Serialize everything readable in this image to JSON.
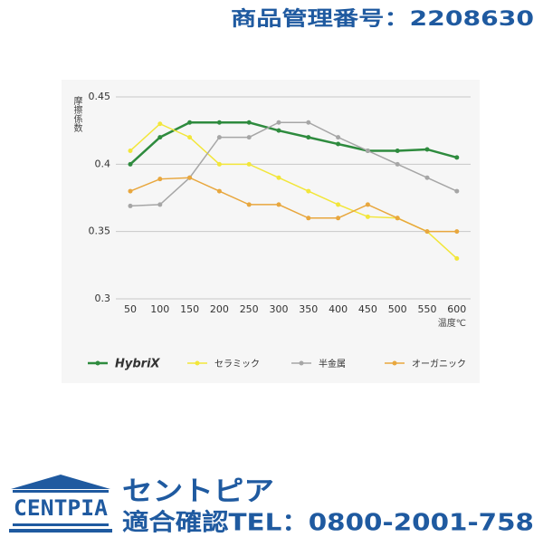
{
  "header": {
    "product_number": "商品管理番号：2208630"
  },
  "chart_data": {
    "type": "line",
    "y_label": "摩擦係数",
    "x_label": "温度℃",
    "categories": [
      "50",
      "100",
      "150",
      "200",
      "250",
      "300",
      "350",
      "400",
      "450",
      "500",
      "550",
      "600"
    ],
    "series": [
      {
        "name": "HybriX",
        "color": "#2e8b3e",
        "values": [
          0.4,
          0.42,
          0.431,
          0.431,
          0.431,
          0.425,
          0.42,
          0.415,
          0.41,
          0.41,
          0.411,
          0.405
        ]
      },
      {
        "name": "セラミック",
        "color": "#f2e63a",
        "values": [
          0.41,
          0.43,
          0.42,
          0.4,
          0.4,
          0.39,
          0.38,
          0.37,
          0.361,
          0.36,
          0.35,
          0.33
        ]
      },
      {
        "name": "半金属",
        "color": "#a6a6a6",
        "values": [
          0.369,
          0.37,
          0.39,
          0.42,
          0.42,
          0.431,
          0.431,
          0.42,
          0.41,
          0.4,
          0.39,
          0.38
        ]
      },
      {
        "name": "オーガニック",
        "color": "#e8a73e",
        "values": [
          0.38,
          0.389,
          0.39,
          0.38,
          0.37,
          0.37,
          0.36,
          0.36,
          0.37,
          0.36,
          0.35,
          0.35
        ]
      }
    ],
    "ylim": [
      0.3,
      0.45
    ],
    "yticks": [
      0.3,
      0.35,
      0.4,
      0.45
    ],
    "grid": true,
    "legend": "bottom"
  },
  "footer": {
    "logo": "CENTPIA",
    "company": "セントピア",
    "phone": "適合確認TEL：0800-2001-758"
  }
}
